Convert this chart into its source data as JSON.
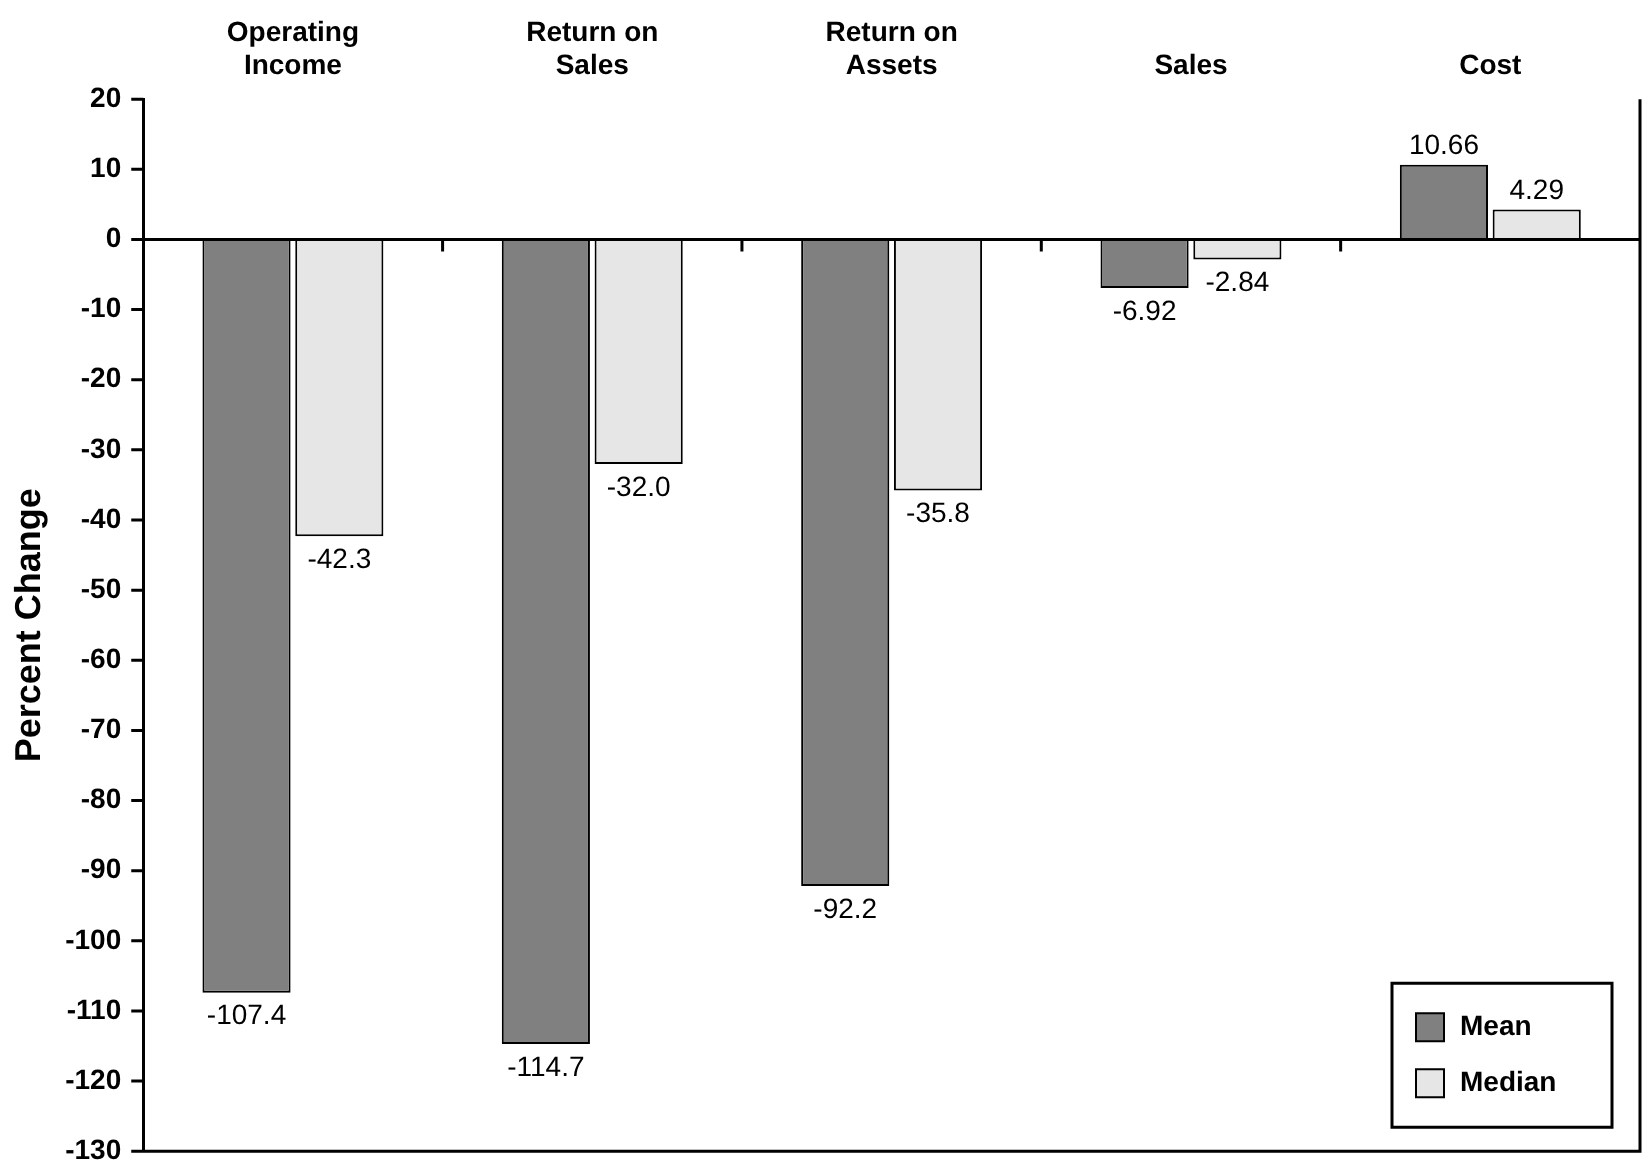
{
  "chart_data": {
    "type": "bar",
    "ylabel": "Percent Change",
    "categories": [
      "Operating Income",
      "Return on Sales",
      "Return on Assets",
      "Sales",
      "Cost"
    ],
    "series": [
      {
        "name": "Mean",
        "color": "#808080",
        "values": [
          -107.4,
          -114.7,
          -92.2,
          -6.92,
          10.66
        ]
      },
      {
        "name": "Median",
        "color": "#e6e6e6",
        "values": [
          -42.3,
          -32.0,
          -35.8,
          -2.84,
          4.29
        ]
      }
    ],
    "value_labels": [
      [
        "-107.4",
        "-114.7",
        "-92.2",
        "-6.92",
        "10.66"
      ],
      [
        "-42.3",
        "-32.0",
        "-35.8",
        "-2.84",
        "4.29"
      ]
    ],
    "ylim": [
      -130,
      20
    ],
    "yticks": [
      20,
      10,
      0,
      -10,
      -20,
      -30,
      -40,
      -50,
      -60,
      -70,
      -80,
      -90,
      -100,
      -110,
      -120,
      -130
    ],
    "legend": "bottom right"
  }
}
